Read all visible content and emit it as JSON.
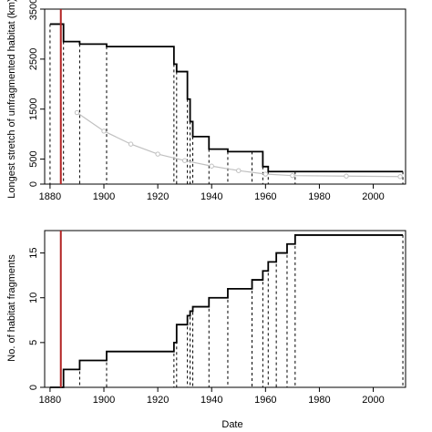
{
  "chart_data": [
    {
      "type": "line",
      "step": true,
      "xlabel": "",
      "ylabel": "Longest stretch of unfragmented habitat (km)",
      "xlim": [
        1878,
        2012
      ],
      "ylim": [
        0,
        3500
      ],
      "xticks": [
        1880,
        1900,
        1920,
        1940,
        1960,
        1980,
        2000
      ],
      "yticks": [
        0,
        500,
        1500,
        2500,
        3500
      ],
      "vline": {
        "x": 1884,
        "color": "#b22222"
      },
      "dashed_x": [
        1880,
        1885,
        1891,
        1901,
        1926,
        1927,
        1931,
        1932,
        1933,
        1939,
        1946,
        1955,
        1959,
        1961,
        1971,
        2011
      ],
      "series": [
        {
          "style": "step",
          "color": "#000000",
          "x": [
            1880,
            1885,
            1891,
            1901,
            1926,
            1927,
            1931,
            1932,
            1933,
            1939,
            1946,
            1959,
            1961,
            2011
          ],
          "y": [
            3200,
            2850,
            2800,
            2750,
            2400,
            2250,
            1700,
            1250,
            950,
            700,
            650,
            350,
            250,
            250
          ]
        },
        {
          "style": "line-points",
          "color": "#c0c0c0",
          "x": [
            1890,
            1900,
            1910,
            1920,
            1930,
            1940,
            1950,
            1960,
            1970,
            1990,
            2010
          ],
          "y": [
            1430,
            1060,
            800,
            600,
            470,
            360,
            270,
            200,
            170,
            160,
            150
          ]
        }
      ]
    },
    {
      "type": "line",
      "step": true,
      "xlabel": "Date",
      "ylabel": "No. of habitat fragments",
      "xlim": [
        1878,
        2012
      ],
      "ylim": [
        0,
        17.5
      ],
      "xticks": [
        1880,
        1900,
        1920,
        1940,
        1960,
        1980,
        2000
      ],
      "yticks": [
        0,
        5,
        10,
        15
      ],
      "vline": {
        "x": 1884,
        "color": "#b22222"
      },
      "dashed_x": [
        1885,
        1891,
        1901,
        1926,
        1927,
        1931,
        1932,
        1933,
        1939,
        1946,
        1955,
        1959,
        1961,
        1964,
        1968,
        1971,
        2011
      ],
      "series": [
        {
          "style": "step",
          "color": "#000000",
          "x": [
            1880,
            1885,
            1891,
            1901,
            1926,
            1927,
            1931,
            1932,
            1933,
            1939,
            1946,
            1955,
            1959,
            1961,
            1964,
            1968,
            1971,
            2011
          ],
          "y": [
            0,
            2,
            3,
            4,
            5,
            7,
            8,
            8.5,
            9,
            10,
            11,
            12,
            13,
            14,
            15,
            16,
            17,
            17
          ]
        }
      ]
    }
  ]
}
